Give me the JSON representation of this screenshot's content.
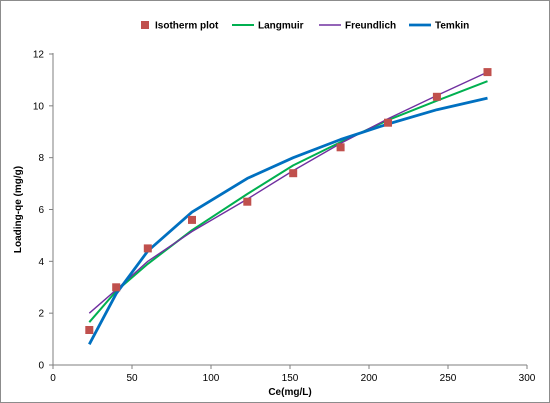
{
  "chart_data": {
    "type": "scatter",
    "xlabel": "Ce(mg/L)",
    "ylabel": "Loading-qe (mg/g)",
    "xlim": [
      0,
      300
    ],
    "ylim": [
      0,
      12
    ],
    "xticks": [
      0,
      50,
      100,
      150,
      200,
      250,
      300
    ],
    "yticks": [
      0,
      2,
      4,
      6,
      8,
      10,
      12
    ],
    "grid": false,
    "legend_position": "top",
    "series": [
      {
        "name": "Isotherm plot",
        "kind": "markers",
        "color": "#c0504d",
        "x": [
          23,
          40,
          60,
          88,
          123,
          152,
          182,
          212,
          243,
          275
        ],
        "y": [
          1.35,
          3.0,
          4.5,
          5.6,
          6.3,
          7.4,
          8.4,
          9.35,
          10.35,
          11.3
        ]
      },
      {
        "name": "Langmuir",
        "kind": "line",
        "color": "#00b050",
        "x": [
          23,
          40,
          60,
          88,
          123,
          152,
          182,
          212,
          243,
          275
        ],
        "y": [
          1.65,
          2.85,
          3.9,
          5.2,
          6.6,
          7.7,
          8.6,
          9.45,
          10.2,
          10.95
        ]
      },
      {
        "name": "Freundlich",
        "kind": "line",
        "color": "#7030a0",
        "x": [
          23,
          40,
          60,
          88,
          123,
          152,
          182,
          212,
          243,
          275
        ],
        "y": [
          2.0,
          2.9,
          4.0,
          5.15,
          6.4,
          7.5,
          8.55,
          9.5,
          10.4,
          11.3
        ]
      },
      {
        "name": "Temkin",
        "kind": "line",
        "color": "#0070c0",
        "x": [
          23,
          40,
          60,
          88,
          123,
          152,
          182,
          212,
          243,
          275
        ],
        "y": [
          0.8,
          2.75,
          4.4,
          5.9,
          7.2,
          8.0,
          8.7,
          9.3,
          9.85,
          10.3
        ]
      }
    ]
  }
}
